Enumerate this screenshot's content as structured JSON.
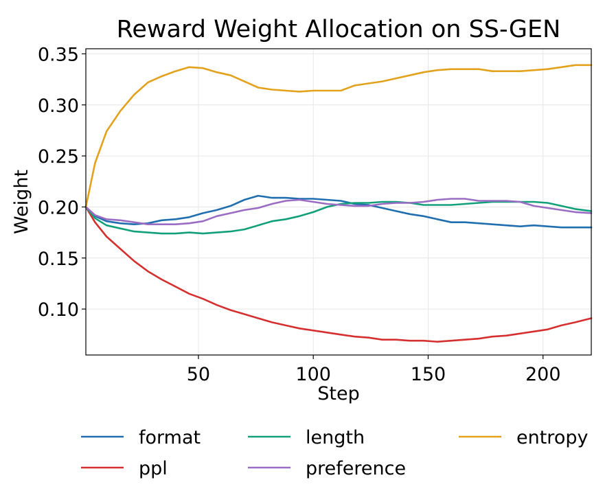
{
  "chart_data": {
    "type": "line",
    "title": "Reward Weight Allocation on SS-GEN",
    "xlabel": "Step",
    "ylabel": "Weight",
    "xlim": [
      1,
      221
    ],
    "ylim": [
      0.055,
      0.355
    ],
    "xticks": [
      50,
      100,
      150,
      200
    ],
    "yticks": [
      0.1,
      0.15,
      0.2,
      0.25,
      0.3,
      0.35
    ],
    "xtick_labels": [
      "50",
      "100",
      "150",
      "200"
    ],
    "ytick_labels": [
      "0.10",
      "0.15",
      "0.20",
      "0.25",
      "0.30",
      "0.35"
    ],
    "grid": true,
    "legend_position": "bottom",
    "x": [
      1,
      5,
      10,
      16,
      22,
      28,
      34,
      40,
      46,
      52,
      58,
      64,
      70,
      76,
      82,
      88,
      94,
      100,
      106,
      112,
      118,
      124,
      130,
      136,
      142,
      148,
      154,
      160,
      166,
      172,
      178,
      184,
      190,
      196,
      202,
      208,
      214,
      221
    ],
    "series": [
      {
        "name": "format",
        "color": "#1f6fb0",
        "values": [
          0.2,
          0.191,
          0.186,
          0.184,
          0.183,
          0.184,
          0.187,
          0.188,
          0.19,
          0.194,
          0.197,
          0.201,
          0.207,
          0.211,
          0.209,
          0.209,
          0.208,
          0.208,
          0.207,
          0.206,
          0.203,
          0.202,
          0.199,
          0.196,
          0.193,
          0.191,
          0.188,
          0.185,
          0.185,
          0.184,
          0.183,
          0.182,
          0.181,
          0.182,
          0.181,
          0.18,
          0.18,
          0.18
        ]
      },
      {
        "name": "ppl",
        "color": "#d62f2f",
        "values": [
          0.2,
          0.185,
          0.171,
          0.159,
          0.147,
          0.137,
          0.129,
          0.122,
          0.115,
          0.11,
          0.104,
          0.099,
          0.095,
          0.091,
          0.087,
          0.084,
          0.081,
          0.079,
          0.077,
          0.075,
          0.073,
          0.072,
          0.07,
          0.07,
          0.069,
          0.069,
          0.068,
          0.069,
          0.07,
          0.071,
          0.073,
          0.074,
          0.076,
          0.078,
          0.08,
          0.084,
          0.087,
          0.091
        ]
      },
      {
        "name": "length",
        "color": "#12a07a",
        "values": [
          0.2,
          0.189,
          0.182,
          0.179,
          0.176,
          0.175,
          0.174,
          0.174,
          0.175,
          0.174,
          0.175,
          0.176,
          0.178,
          0.182,
          0.186,
          0.188,
          0.191,
          0.195,
          0.2,
          0.203,
          0.204,
          0.204,
          0.205,
          0.205,
          0.204,
          0.202,
          0.202,
          0.202,
          0.203,
          0.204,
          0.205,
          0.205,
          0.205,
          0.205,
          0.204,
          0.201,
          0.198,
          0.196
        ]
      },
      {
        "name": "preference",
        "color": "#9a6cc4",
        "values": [
          0.2,
          0.192,
          0.188,
          0.187,
          0.185,
          0.183,
          0.183,
          0.183,
          0.184,
          0.186,
          0.191,
          0.194,
          0.197,
          0.199,
          0.203,
          0.206,
          0.207,
          0.205,
          0.203,
          0.202,
          0.201,
          0.201,
          0.203,
          0.204,
          0.204,
          0.205,
          0.207,
          0.208,
          0.208,
          0.206,
          0.206,
          0.206,
          0.205,
          0.201,
          0.199,
          0.197,
          0.195,
          0.194
        ]
      },
      {
        "name": "entropy",
        "color": "#e3a11c",
        "values": [
          0.2,
          0.243,
          0.274,
          0.294,
          0.31,
          0.322,
          0.328,
          0.333,
          0.337,
          0.336,
          0.332,
          0.329,
          0.323,
          0.317,
          0.315,
          0.314,
          0.313,
          0.314,
          0.314,
          0.314,
          0.319,
          0.321,
          0.323,
          0.326,
          0.329,
          0.332,
          0.334,
          0.335,
          0.335,
          0.335,
          0.333,
          0.333,
          0.333,
          0.334,
          0.335,
          0.337,
          0.339,
          0.339
        ]
      }
    ]
  }
}
